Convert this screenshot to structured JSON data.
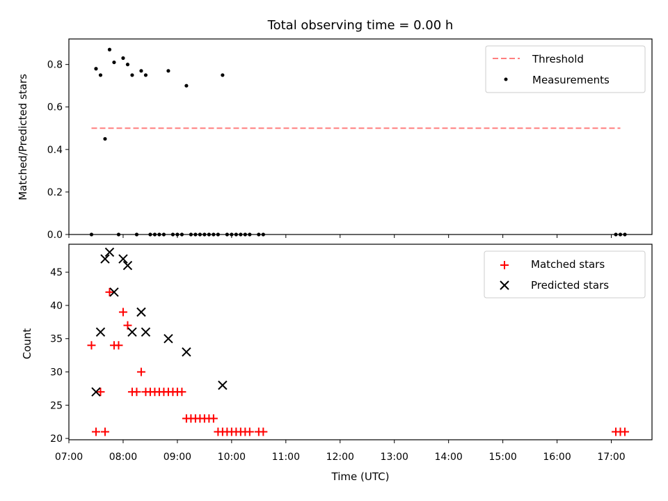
{
  "chart_data": [
    {
      "type": "scatter",
      "title": "Total observing time = 0.00 h",
      "xlabel": "",
      "ylabel": "Matched/Predicted stars",
      "ylim": [
        0.0,
        0.92
      ],
      "xlim": [
        "07:00",
        "17:45"
      ],
      "yticks": [
        "0.0",
        "0.2",
        "0.4",
        "0.6",
        "0.8"
      ],
      "legend_position": "top-right",
      "series": [
        {
          "name": "Threshold",
          "style": "dashed-line",
          "color": "#ff7f7f",
          "x": [
            "07:25",
            "17:10"
          ],
          "y": [
            0.5,
            0.5
          ]
        },
        {
          "name": "Measurements",
          "style": "dot",
          "color": "#000000",
          "x": [
            "07:25",
            "07:30",
            "07:35",
            "07:40",
            "07:45",
            "07:50",
            "07:55",
            "08:00",
            "08:05",
            "08:10",
            "08:15",
            "08:20",
            "08:25",
            "08:30",
            "08:35",
            "08:40",
            "08:45",
            "08:50",
            "08:55",
            "09:00",
            "09:05",
            "09:10",
            "09:15",
            "09:20",
            "09:25",
            "09:30",
            "09:35",
            "09:40",
            "09:45",
            "09:50",
            "09:55",
            "10:00",
            "10:05",
            "10:10",
            "10:15",
            "10:20",
            "10:30",
            "10:35",
            "17:05",
            "17:10",
            "17:15"
          ],
          "y": [
            0.0,
            0.78,
            0.75,
            0.45,
            0.87,
            0.81,
            0.0,
            0.83,
            0.8,
            0.75,
            0.0,
            0.77,
            0.75,
            0.0,
            0.0,
            0.0,
            0.0,
            0.77,
            0.0,
            0.0,
            0.0,
            0.7,
            0.0,
            0.0,
            0.0,
            0.0,
            0.0,
            0.0,
            0.0,
            0.75,
            0.0,
            0.0,
            0.0,
            0.0,
            0.0,
            0.0,
            0.0,
            0.0,
            0.0,
            0.0,
            0.0
          ]
        }
      ]
    },
    {
      "type": "scatter",
      "title": "",
      "xlabel": "Time (UTC)",
      "ylabel": "Count",
      "ylim": [
        19.8,
        49.2
      ],
      "xlim": [
        "07:00",
        "17:45"
      ],
      "xticks": [
        "07:00",
        "08:00",
        "09:00",
        "10:00",
        "11:00",
        "12:00",
        "13:00",
        "14:00",
        "15:00",
        "16:00",
        "17:00"
      ],
      "yticks": [
        "20",
        "25",
        "30",
        "35",
        "40",
        "45"
      ],
      "legend_position": "top-right",
      "series": [
        {
          "name": "Matched stars",
          "style": "plus",
          "color": "#ff0000",
          "x": [
            "07:25",
            "07:30",
            "07:35",
            "07:40",
            "07:45",
            "07:50",
            "07:55",
            "08:00",
            "08:05",
            "08:10",
            "08:15",
            "08:20",
            "08:25",
            "08:30",
            "08:35",
            "08:40",
            "08:45",
            "08:50",
            "08:55",
            "09:00",
            "09:05",
            "09:10",
            "09:15",
            "09:20",
            "09:25",
            "09:30",
            "09:35",
            "09:40",
            "09:45",
            "09:50",
            "09:55",
            "10:00",
            "10:05",
            "10:10",
            "10:15",
            "10:20",
            "10:30",
            "10:35",
            "17:05",
            "17:10",
            "17:15"
          ],
          "y": [
            34,
            21,
            27,
            21,
            42,
            34,
            34,
            39,
            37,
            27,
            27,
            30,
            27,
            27,
            27,
            27,
            27,
            27,
            27,
            27,
            27,
            23,
            23,
            23,
            23,
            23,
            23,
            23,
            21,
            21,
            21,
            21,
            21,
            21,
            21,
            21,
            21,
            21,
            21,
            21,
            21
          ]
        },
        {
          "name": "Predicted stars",
          "style": "x",
          "color": "#000000",
          "x": [
            "07:30",
            "07:35",
            "07:40",
            "07:45",
            "07:50",
            "08:00",
            "08:05",
            "08:10",
            "08:20",
            "08:25",
            "08:50",
            "09:10",
            "09:50"
          ],
          "y": [
            27,
            36,
            47,
            48,
            42,
            47,
            46,
            36,
            39,
            36,
            35,
            33,
            28
          ]
        }
      ]
    }
  ]
}
